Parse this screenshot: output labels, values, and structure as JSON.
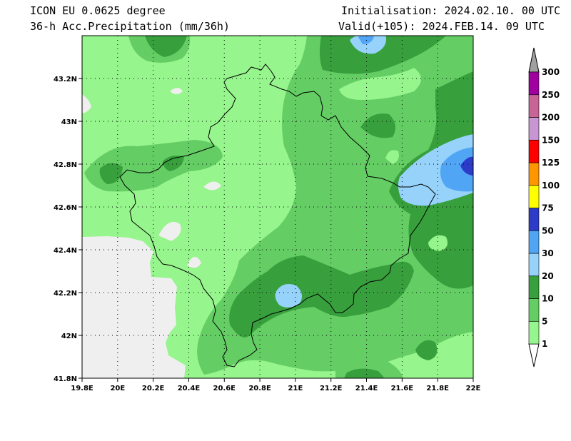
{
  "header": {
    "model": "ICON EU 0.0625 degree",
    "field": "36-h Acc.Precipitation (mm/36h)",
    "init": "Initialisation: 2024.02.10. 00 UTC",
    "valid": "Valid(+105): 2024.FEB.14. 09 UTC"
  },
  "map": {
    "lon_range": [
      19.8,
      22.0
    ],
    "lat_range": [
      41.8,
      43.4
    ],
    "x_ticks": [
      {
        "v": 19.8,
        "t": "19.8E"
      },
      {
        "v": 20.0,
        "t": "20E"
      },
      {
        "v": 20.2,
        "t": "20.2E"
      },
      {
        "v": 20.4,
        "t": "20.4E"
      },
      {
        "v": 20.6,
        "t": "20.6E"
      },
      {
        "v": 20.8,
        "t": "20.8E"
      },
      {
        "v": 21.0,
        "t": "21E"
      },
      {
        "v": 21.2,
        "t": "21.2E"
      },
      {
        "v": 21.4,
        "t": "21.4E"
      },
      {
        "v": 21.6,
        "t": "21.6E"
      },
      {
        "v": 21.8,
        "t": "21.8E"
      },
      {
        "v": 22.0,
        "t": "22E"
      }
    ],
    "y_ticks": [
      {
        "v": 41.8,
        "t": "41.8N"
      },
      {
        "v": 42.0,
        "t": "42N"
      },
      {
        "v": 42.2,
        "t": "42.2N"
      },
      {
        "v": 42.4,
        "t": "42.4N"
      },
      {
        "v": 42.6,
        "t": "42.6N"
      },
      {
        "v": 42.8,
        "t": "42.8N"
      },
      {
        "v": 43.0,
        "t": "43N"
      },
      {
        "v": 43.2,
        "t": "43.2N"
      }
    ],
    "grid": true
  },
  "colorbar": {
    "levels": [
      "1",
      "5",
      "10",
      "20",
      "30",
      "50",
      "75",
      "100",
      "125",
      "150",
      "200",
      "250",
      "300"
    ],
    "colors": [
      "#96f58c",
      "#64cd64",
      "#37a03c",
      "#96d2fa",
      "#50a5f5",
      "#2d3cc8",
      "#ffff00",
      "#ff9600",
      "#ff0000",
      "#c896d2",
      "#c86496",
      "#a000a0"
    ],
    "top_color": "#a0a0a0",
    "bottom_color": "#ffffff"
  },
  "colors": {
    "below_threshold": "#efefef",
    "c1": "#96f58c",
    "c5": "#64cd64",
    "c10": "#37a03c",
    "c20": "#96d2fa",
    "c30": "#50a5f5",
    "c50": "#2d3cc8"
  }
}
